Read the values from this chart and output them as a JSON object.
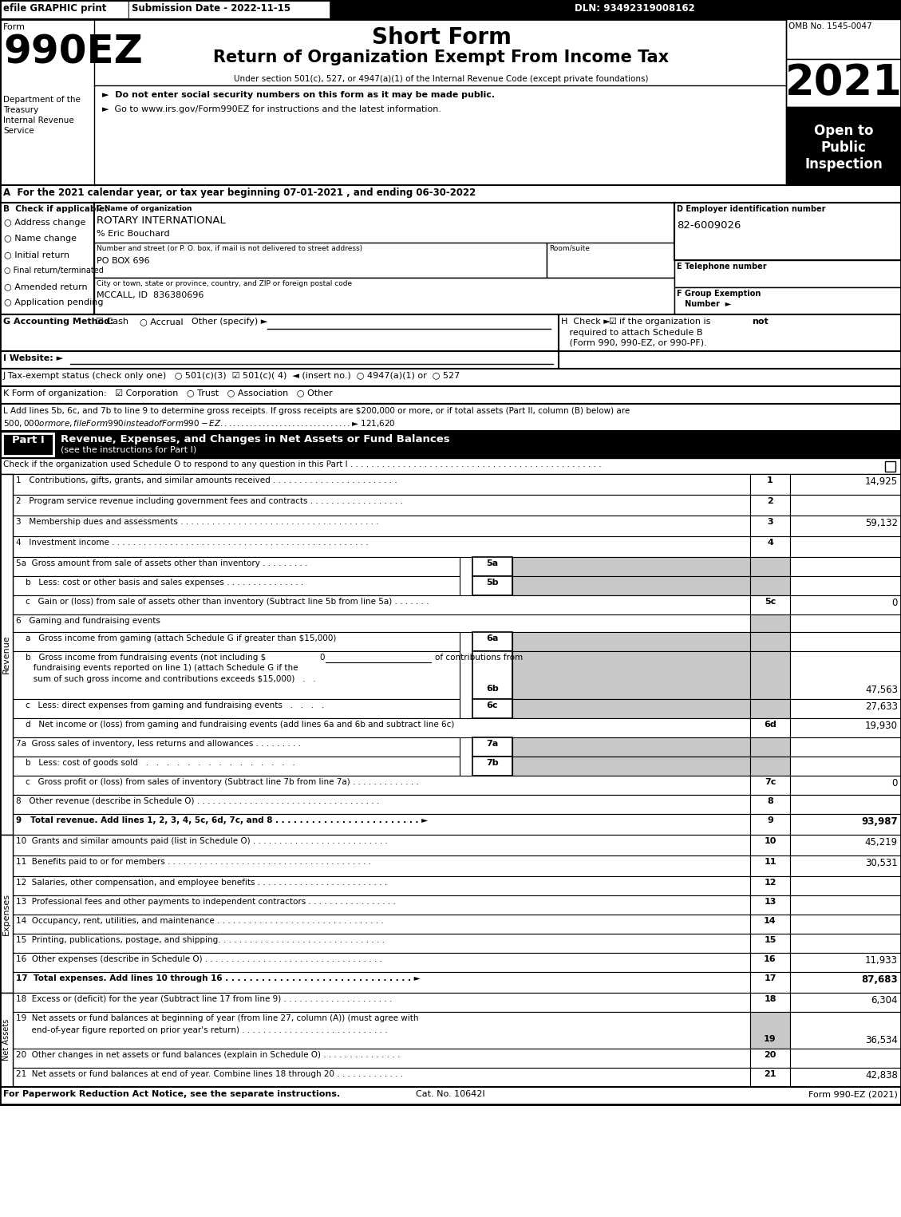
{
  "title_short_form": "Short Form",
  "title_main": "Return of Organization Exempt From Income Tax",
  "subtitle": "Under section 501(c), 527, or 4947(a)(1) of the Internal Revenue Code (except private foundations)",
  "bullet1": "►  Do not enter social security numbers on this form as it may be made public.",
  "bullet2": "►  Go to www.irs.gov/Form990EZ for instructions and the latest information.",
  "efile_text": "efile GRAPHIC print",
  "submission_date": "Submission Date - 2022-11-15",
  "dln": "DLN: 93492319008162",
  "omb": "OMB No. 1545-0047",
  "year": "2021",
  "form_label": "Form",
  "form_number": "990EZ",
  "dept": "Department of the\nTreasury\nInternal Revenue\nService",
  "section_A": "A  For the 2021 calendar year, or tax year beginning 07-01-2021 , and ending 06-30-2022",
  "checkboxes_B": [
    "Address change",
    "Name change",
    "Initial return",
    "Final return/terminated",
    "Amended return",
    "Application pending"
  ],
  "org_name": "ROTARY INTERNATIONAL",
  "care_of": "% Eric Bouchard",
  "address_label": "Number and street (or P. O. box, if mail is not delivered to street address)",
  "room_label": "Room/suite",
  "address_val": "PO BOX 696",
  "city_label": "City or town, state or province, country, and ZIP or foreign postal code",
  "city_val": "MCCALL, ID  836380696",
  "ein": "82-6009026",
  "shaded_color": "#c8c8c8",
  "footer_left": "For Paperwork Reduction Act Notice, see the separate instructions.",
  "footer_cat": "Cat. No. 10642I",
  "footer_right": "Form 990-EZ (2021)"
}
